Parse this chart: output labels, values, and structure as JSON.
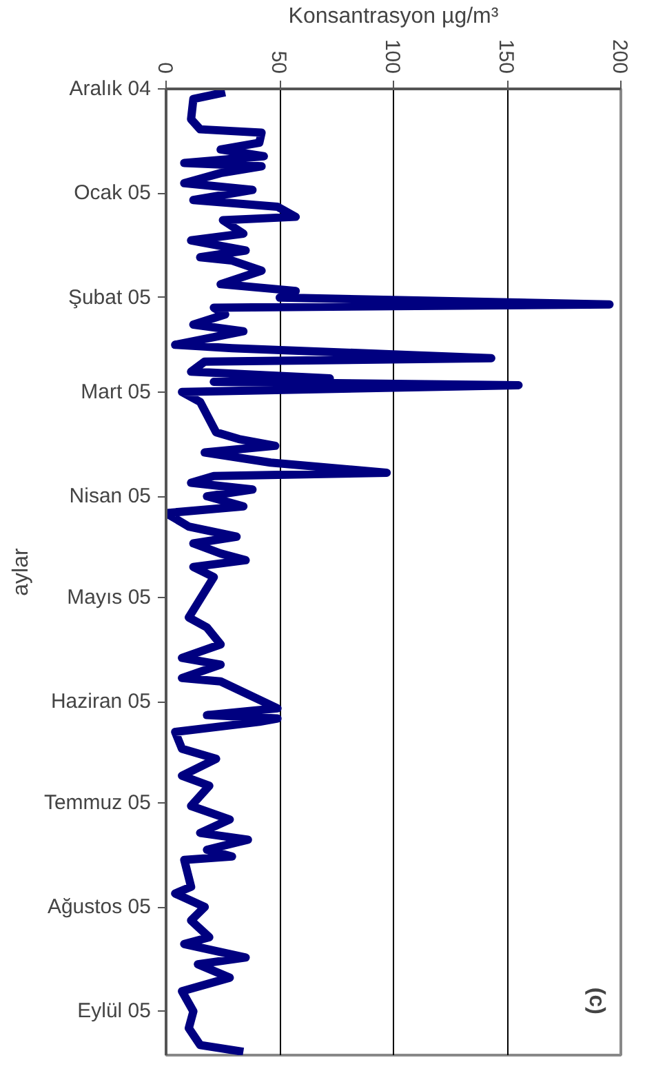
{
  "chart_data": {
    "type": "line",
    "orientation": "horizontal",
    "xlabel": "Konsantrasyon µg/m³",
    "ylabel": "aylar",
    "annotations": [
      "(c)"
    ],
    "xlim": [
      0,
      200
    ],
    "xticks": [
      0,
      50,
      100,
      150,
      200
    ],
    "grid": "x",
    "line_style": "solid",
    "marker": "none",
    "ylim": [
      "2005-09-14",
      "2004-12-01"
    ],
    "yticks": [
      {
        "value": "2004-12-01",
        "label": "Aralık 04"
      },
      {
        "value": "2005-01-01",
        "label": "Ocak 05"
      },
      {
        "value": "2005-02-01",
        "label": "Şubat 05"
      },
      {
        "value": "2005-03-01",
        "label": "Mart 05"
      },
      {
        "value": "2005-04-01",
        "label": "Nisan 05"
      },
      {
        "value": "2005-05-01",
        "label": "Mayıs 05"
      },
      {
        "value": "2005-06-01",
        "label": "Haziran 05"
      },
      {
        "value": "2005-07-01",
        "label": "Temmuz 05"
      },
      {
        "value": "2005-08-01",
        "label": "Ağustos 05"
      },
      {
        "value": "2005-09-01",
        "label": "Eylül 05"
      }
    ],
    "x": [
      "2004-12-02",
      "2004-12-04",
      "2004-12-10",
      "2004-12-13",
      "2004-12-14",
      "2004-12-17",
      "2004-12-19",
      "2004-12-21",
      "2004-12-23",
      "2004-12-24",
      "2004-12-26",
      "2004-12-29",
      "2004-12-31",
      "2005-01-03",
      "2005-01-05",
      "2005-01-08",
      "2005-01-09",
      "2005-01-13",
      "2005-01-15",
      "2005-01-18",
      "2005-01-20",
      "2005-01-21",
      "2005-01-24",
      "2005-01-28",
      "2005-01-30",
      "2005-02-01",
      "2005-02-03",
      "2005-02-04",
      "2005-02-06",
      "2005-02-09",
      "2005-02-11",
      "2005-02-15",
      "2005-02-16",
      "2005-02-19",
      "2005-02-20",
      "2005-02-23",
      "2005-02-25",
      "2005-02-26",
      "2005-02-27",
      "2005-03-01",
      "2005-03-04",
      "2005-03-13",
      "2005-03-15",
      "2005-03-17",
      "2005-03-19",
      "2005-03-22",
      "2005-03-25",
      "2005-03-26",
      "2005-03-28",
      "2005-03-30",
      "2005-04-01",
      "2005-04-04",
      "2005-04-06",
      "2005-04-10",
      "2005-04-13",
      "2005-04-15",
      "2005-04-18",
      "2005-04-20",
      "2005-04-22",
      "2005-04-25",
      "2005-05-07",
      "2005-05-10",
      "2005-05-15",
      "2005-05-19",
      "2005-05-21",
      "2005-05-25",
      "2005-05-26",
      "2005-06-03",
      "2005-06-05",
      "2005-06-06",
      "2005-06-07",
      "2005-06-10",
      "2005-06-15",
      "2005-06-18",
      "2005-06-23",
      "2005-06-26",
      "2005-07-02",
      "2005-07-06",
      "2005-07-10",
      "2005-07-12",
      "2005-07-15",
      "2005-07-17",
      "2005-07-18",
      "2005-07-26",
      "2005-07-28",
      "2005-08-01",
      "2005-08-05",
      "2005-08-10",
      "2005-08-12",
      "2005-08-16",
      "2005-08-18",
      "2005-08-22",
      "2005-08-26",
      "2005-09-01",
      "2005-09-06",
      "2005-09-11",
      "2005-09-13"
    ],
    "series": [
      {
        "color": "#000080",
        "values": [
          26,
          12,
          11,
          15,
          42,
          41,
          24,
          43,
          8,
          42,
          24,
          8,
          38,
          12,
          49,
          57,
          25,
          34,
          11,
          35,
          15,
          29,
          42,
          24,
          57,
          50,
          195,
          21,
          26,
          12,
          34,
          4,
          29,
          143,
          17,
          11,
          72,
          21,
          155,
          7,
          15,
          22,
          32,
          48,
          17,
          46,
          97,
          21,
          11,
          38,
          18,
          34,
          0,
          10,
          31,
          12,
          24,
          35,
          12,
          21,
          10,
          18,
          24,
          7,
          24,
          7,
          24,
          49,
          18,
          49,
          41,
          4,
          7,
          22,
          7,
          19,
          11,
          28,
          15,
          36,
          18,
          29,
          8,
          11,
          4,
          17,
          11,
          19,
          8,
          35,
          14,
          28,
          7,
          12,
          10,
          15,
          34
        ]
      }
    ]
  }
}
